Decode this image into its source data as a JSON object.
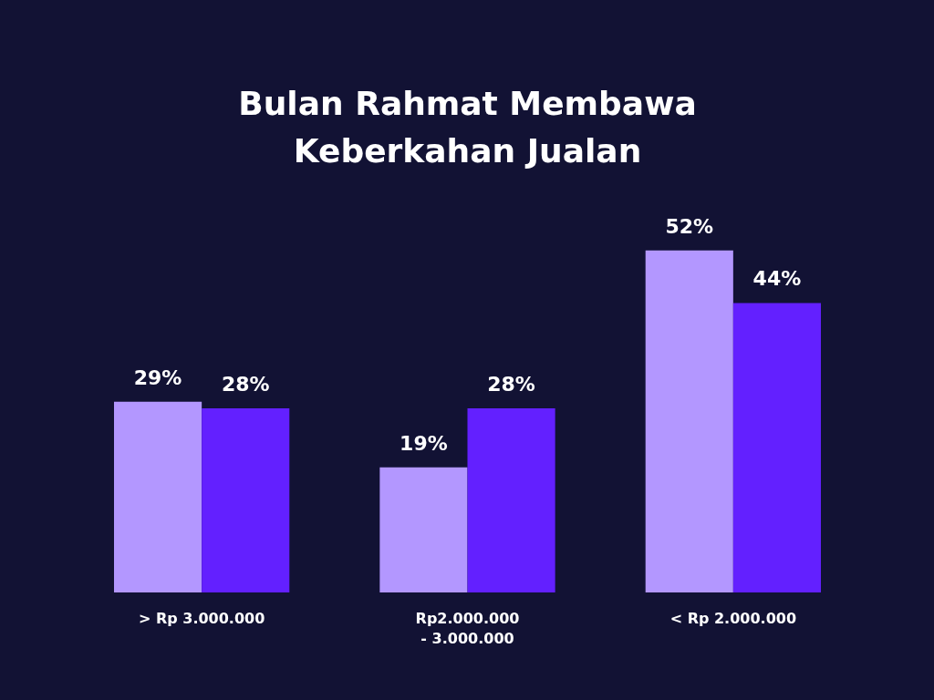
{
  "chart_data": {
    "type": "bar",
    "title": "Bulan Rahmat Membawa\nKeberkahan Jualan",
    "categories": [
      "> Rp 3.000.000",
      "Rp2.000.000\n- 3.000.000",
      "< Rp 2.000.000"
    ],
    "series": [
      {
        "color": "#b397ff",
        "values": [
          29,
          19,
          52
        ],
        "value_labels": [
          "29%",
          "19%",
          "52%"
        ]
      },
      {
        "color": "#6320ff",
        "values": [
          28,
          28,
          44
        ],
        "value_labels": [
          "28%",
          "28%",
          "44%"
        ]
      }
    ],
    "tick_labels": "x"
  }
}
